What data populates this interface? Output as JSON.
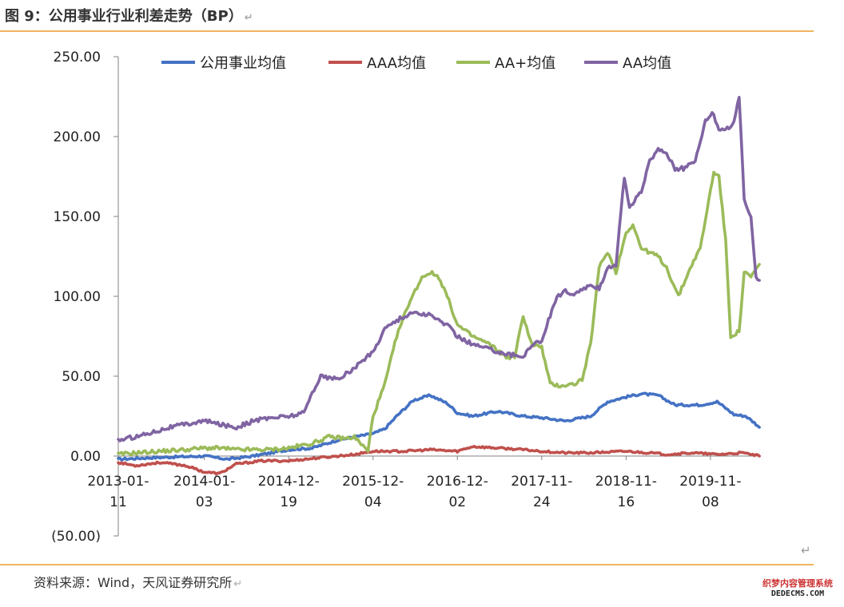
{
  "header": {
    "title": "图 9：公用事业行业利差走势（BP）"
  },
  "footer": {
    "source": "资料来源：Wind，天风证券研究所"
  },
  "watermark": {
    "line1": "织梦内容管理系统",
    "line2": "DEDECMS.COM"
  },
  "chart_data": {
    "type": "line",
    "title": "公用事业行业利差走势（BP）",
    "ylim": [
      -50,
      250
    ],
    "y_ticks": [
      -50,
      0,
      50,
      100,
      150,
      200,
      250
    ],
    "y_tick_labels": [
      "(50.00)",
      "0.00",
      "50.00",
      "100.00",
      "150.00",
      "200.00",
      "250.00"
    ],
    "negative_label_color": "#c00000",
    "x_tick_labels": [
      [
        "2013-01-",
        "11"
      ],
      [
        "2014-01-",
        "03"
      ],
      [
        "2014-12-",
        "19"
      ],
      [
        "2015-12-",
        "04"
      ],
      [
        "2016-12-",
        "02"
      ],
      [
        "2017-11-",
        "24"
      ],
      [
        "2018-11-",
        "16"
      ],
      [
        "2019-11-",
        "08"
      ]
    ],
    "x_tick_index": [
      0,
      51,
      101,
      151,
      201,
      251,
      301,
      351
    ],
    "n_points": 380,
    "legend_position": "top",
    "grid": false,
    "series": [
      {
        "name": "公用事业均值",
        "color": "#4472c4",
        "points": [
          [
            0,
            -2
          ],
          [
            20,
            -1
          ],
          [
            51,
            0
          ],
          [
            65,
            -2
          ],
          [
            80,
            0
          ],
          [
            101,
            4
          ],
          [
            115,
            5
          ],
          [
            130,
            10
          ],
          [
            140,
            12
          ],
          [
            151,
            14
          ],
          [
            158,
            17
          ],
          [
            165,
            25
          ],
          [
            175,
            35
          ],
          [
            185,
            38
          ],
          [
            195,
            33
          ],
          [
            201,
            27
          ],
          [
            210,
            25
          ],
          [
            225,
            28
          ],
          [
            240,
            25
          ],
          [
            251,
            24
          ],
          [
            265,
            22
          ],
          [
            280,
            25
          ],
          [
            290,
            34
          ],
          [
            301,
            37
          ],
          [
            310,
            39
          ],
          [
            320,
            38
          ],
          [
            330,
            32
          ],
          [
            345,
            32
          ],
          [
            355,
            34
          ],
          [
            365,
            26
          ],
          [
            372,
            25
          ],
          [
            378,
            20
          ],
          [
            380,
            18
          ]
        ]
      },
      {
        "name": "AAA均值",
        "color": "#c0504d",
        "points": [
          [
            0,
            -4
          ],
          [
            10,
            -6
          ],
          [
            25,
            -4
          ],
          [
            40,
            -6
          ],
          [
            51,
            -10
          ],
          [
            60,
            -11
          ],
          [
            70,
            -5
          ],
          [
            85,
            -3
          ],
          [
            101,
            -3
          ],
          [
            120,
            -1
          ],
          [
            140,
            1
          ],
          [
            151,
            3
          ],
          [
            170,
            3
          ],
          [
            185,
            4
          ],
          [
            201,
            3
          ],
          [
            210,
            6
          ],
          [
            225,
            5
          ],
          [
            240,
            4
          ],
          [
            251,
            3
          ],
          [
            265,
            2
          ],
          [
            280,
            2
          ],
          [
            301,
            3
          ],
          [
            315,
            2
          ],
          [
            325,
            1
          ],
          [
            340,
            2
          ],
          [
            355,
            1
          ],
          [
            370,
            2
          ],
          [
            380,
            0
          ]
        ]
      },
      {
        "name": "AA+均值",
        "color": "#9bbb59",
        "points": [
          [
            0,
            1
          ],
          [
            10,
            2
          ],
          [
            25,
            3
          ],
          [
            40,
            4
          ],
          [
            51,
            5
          ],
          [
            60,
            5
          ],
          [
            70,
            4
          ],
          [
            80,
            4
          ],
          [
            90,
            4
          ],
          [
            101,
            5
          ],
          [
            115,
            8
          ],
          [
            125,
            12
          ],
          [
            135,
            11
          ],
          [
            140,
            12
          ],
          [
            148,
            3
          ],
          [
            151,
            25
          ],
          [
            158,
            45
          ],
          [
            165,
            75
          ],
          [
            172,
            95
          ],
          [
            180,
            112
          ],
          [
            185,
            115
          ],
          [
            190,
            112
          ],
          [
            195,
            100
          ],
          [
            201,
            82
          ],
          [
            210,
            75
          ],
          [
            220,
            70
          ],
          [
            230,
            62
          ],
          [
            235,
            62
          ],
          [
            240,
            88
          ],
          [
            245,
            70
          ],
          [
            251,
            68
          ],
          [
            256,
            45
          ],
          [
            262,
            44
          ],
          [
            270,
            45
          ],
          [
            275,
            48
          ],
          [
            280,
            70
          ],
          [
            285,
            118
          ],
          [
            290,
            128
          ],
          [
            295,
            115
          ],
          [
            301,
            140
          ],
          [
            305,
            145
          ],
          [
            310,
            130
          ],
          [
            320,
            125
          ],
          [
            325,
            118
          ],
          [
            332,
            100
          ],
          [
            340,
            120
          ],
          [
            345,
            130
          ],
          [
            350,
            160
          ],
          [
            353,
            178
          ],
          [
            356,
            175
          ],
          [
            360,
            135
          ],
          [
            363,
            75
          ],
          [
            368,
            78
          ],
          [
            371,
            115
          ],
          [
            375,
            112
          ],
          [
            380,
            120
          ]
        ]
      },
      {
        "name": "AA均值",
        "color": "#8064a2",
        "points": [
          [
            0,
            10
          ],
          [
            10,
            12
          ],
          [
            20,
            15
          ],
          [
            30,
            18
          ],
          [
            40,
            20
          ],
          [
            51,
            22
          ],
          [
            60,
            20
          ],
          [
            70,
            18
          ],
          [
            80,
            22
          ],
          [
            90,
            24
          ],
          [
            101,
            25
          ],
          [
            110,
            27
          ],
          [
            115,
            40
          ],
          [
            120,
            50
          ],
          [
            130,
            48
          ],
          [
            140,
            55
          ],
          [
            145,
            60
          ],
          [
            151,
            65
          ],
          [
            158,
            80
          ],
          [
            165,
            85
          ],
          [
            175,
            90
          ],
          [
            185,
            88
          ],
          [
            195,
            82
          ],
          [
            201,
            75
          ],
          [
            210,
            70
          ],
          [
            220,
            67
          ],
          [
            230,
            64
          ],
          [
            240,
            62
          ],
          [
            245,
            70
          ],
          [
            251,
            72
          ],
          [
            255,
            85
          ],
          [
            260,
            100
          ],
          [
            265,
            103
          ],
          [
            270,
            100
          ],
          [
            275,
            105
          ],
          [
            280,
            106
          ],
          [
            285,
            105
          ],
          [
            290,
            118
          ],
          [
            295,
            120
          ],
          [
            300,
            175
          ],
          [
            303,
            155
          ],
          [
            306,
            160
          ],
          [
            310,
            165
          ],
          [
            315,
            185
          ],
          [
            320,
            192
          ],
          [
            325,
            190
          ],
          [
            330,
            180
          ],
          [
            336,
            180
          ],
          [
            342,
            185
          ],
          [
            348,
            210
          ],
          [
            352,
            215
          ],
          [
            356,
            205
          ],
          [
            362,
            205
          ],
          [
            365,
            210
          ],
          [
            368,
            225
          ],
          [
            371,
            160
          ],
          [
            375,
            150
          ],
          [
            378,
            113
          ],
          [
            380,
            110
          ]
        ]
      }
    ]
  }
}
